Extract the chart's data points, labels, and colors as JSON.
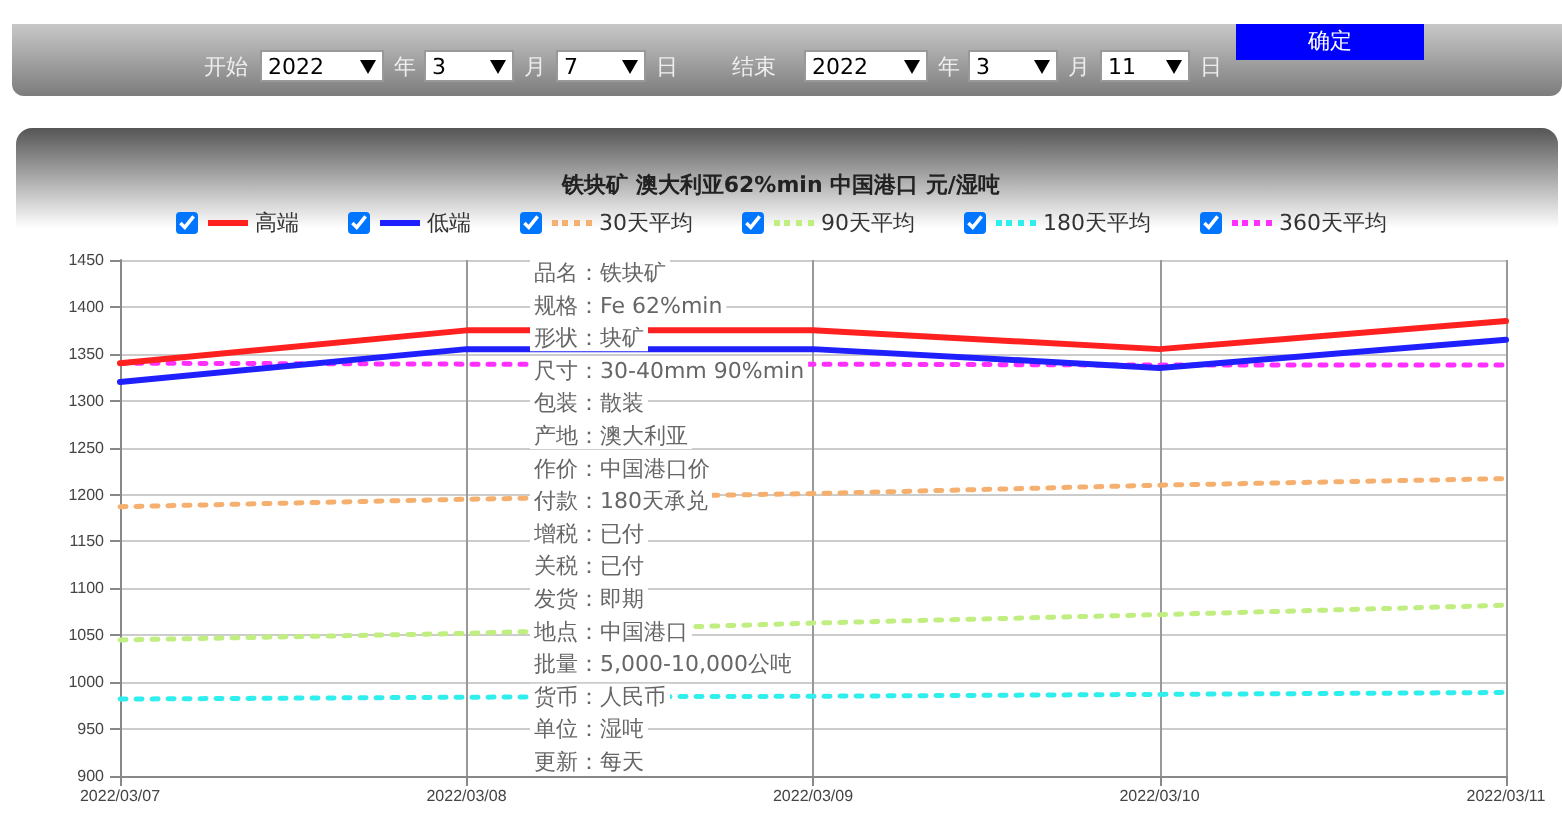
{
  "chart_data": {
    "type": "line",
    "title": "铁块矿 澳大利亚62%min 中国港口 元/湿吨",
    "categories": [
      "2022/03/07",
      "2022/03/08",
      "2022/03/09",
      "2022/03/10",
      "2022/03/11"
    ],
    "series": [
      {
        "name": "高端",
        "color": "#ff2020",
        "values": [
          1340,
          1375,
          1375,
          1355,
          1385
        ],
        "line_style": "solid"
      },
      {
        "name": "低端",
        "color": "#2020ff",
        "values": [
          1320,
          1355,
          1355,
          1335,
          1365
        ],
        "line_style": "solid"
      },
      {
        "name": "30天平均",
        "color": "#f5b070",
        "values": [
          1187,
          1195,
          1201,
          1210,
          1217
        ],
        "line_style": "dotted"
      },
      {
        "name": "90天平均",
        "color": "#c0ee80",
        "values": [
          1045,
          1052,
          1063,
          1072,
          1082
        ],
        "line_style": "dotted"
      },
      {
        "name": "180天平均",
        "color": "#30eeee",
        "values": [
          982,
          984,
          985,
          987,
          989
        ],
        "line_style": "dotted"
      },
      {
        "name": "360天平均",
        "color": "#ff30ff",
        "values": [
          1340,
          1339,
          1339,
          1338,
          1338
        ],
        "line_style": "dotted"
      }
    ],
    "ylim": [
      900,
      1450
    ],
    "yticks": [
      900,
      950,
      1000,
      1050,
      1100,
      1150,
      1200,
      1250,
      1300,
      1350,
      1400,
      1450
    ],
    "grid": true,
    "legend": "top",
    "marker": "none",
    "annotations": [
      "开始",
      "2022",
      "年",
      "3",
      "月",
      "7",
      "日",
      "结束",
      "2022",
      "年",
      "3",
      "月",
      "11",
      "日",
      "确定",
      "品名：铁块矿",
      "规格：Fe 62%min",
      "形状：块矿",
      "尺寸：30-40mm 90%min",
      "包装：散装",
      "产地：澳大利亚",
      "作价：中国港口价",
      "付款：180天承兑",
      "增税：已付",
      "关税：已付",
      "发货：即期",
      "地点：中国港口",
      "批量：5,000-10,000公吨",
      "货币：人民币",
      "单位：湿吨",
      "更新：每天"
    ]
  }
}
